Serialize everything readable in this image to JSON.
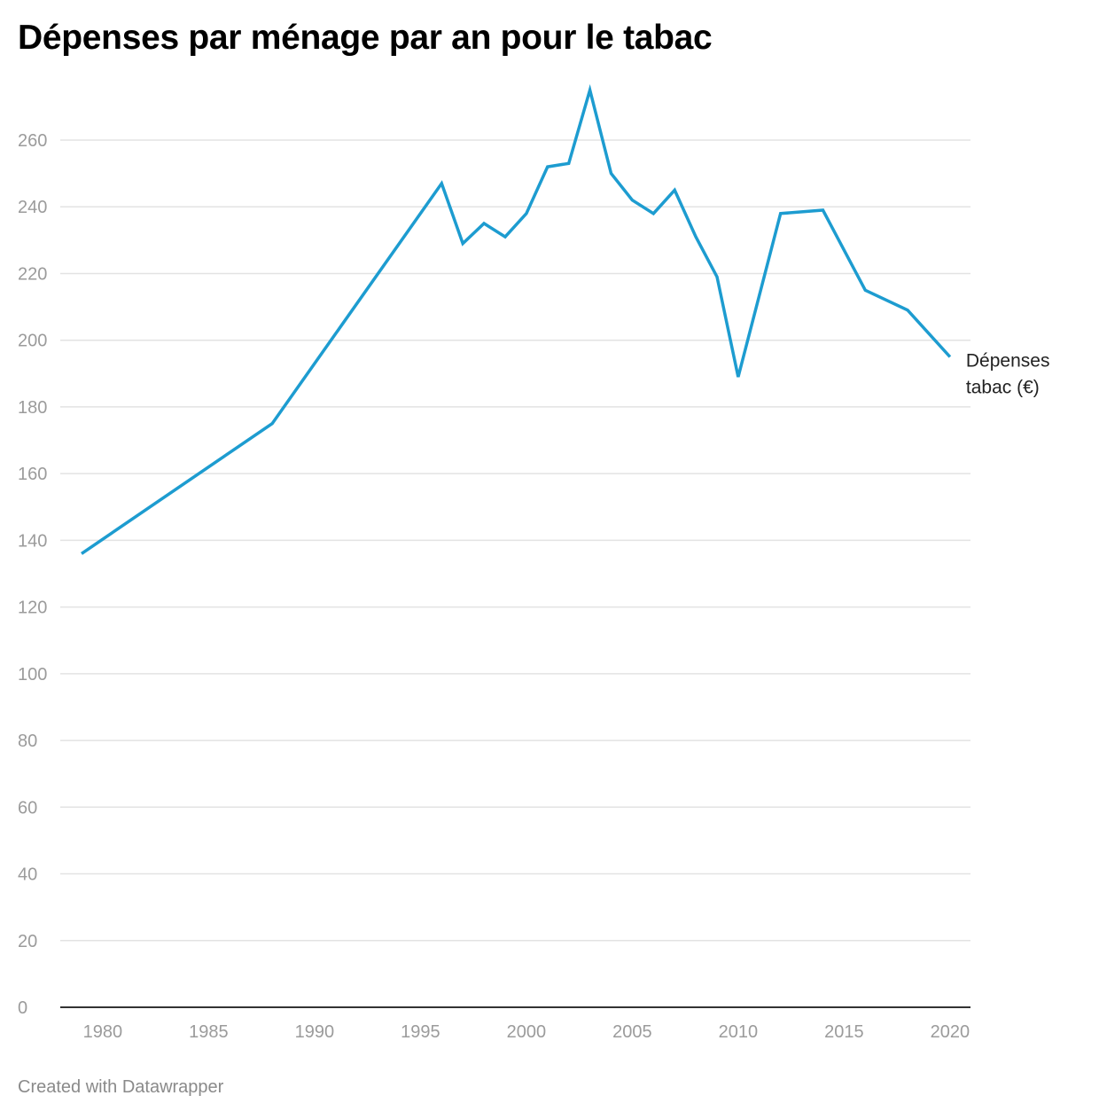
{
  "chart_data": {
    "type": "line",
    "title": "Dépenses par ménage par an pour le tabac",
    "xlabel": "",
    "ylabel": "",
    "xlim": [
      1979,
      2020
    ],
    "ylim": [
      0,
      275
    ],
    "x_ticks": [
      1980,
      1985,
      1990,
      1995,
      2000,
      2005,
      2010,
      2015,
      2020
    ],
    "y_ticks": [
      0,
      20,
      40,
      60,
      80,
      100,
      120,
      140,
      160,
      180,
      200,
      220,
      240,
      260
    ],
    "grid": "horizontal",
    "legend": "none",
    "series": [
      {
        "name": "Dépenses tabac (€)",
        "label_lines": [
          "Dépenses",
          "tabac (€)"
        ],
        "color": "#1d9cd0",
        "x": [
          1979,
          1988,
          1996,
          1997,
          1998,
          1999,
          2000,
          2001,
          2002,
          2003,
          2004,
          2005,
          2006,
          2007,
          2008,
          2009,
          2010,
          2012,
          2014,
          2016,
          2018,
          2020
        ],
        "values": [
          136,
          175,
          247,
          229,
          235,
          231,
          238,
          252,
          253,
          275,
          250,
          242,
          238,
          245,
          231,
          219,
          189,
          238,
          239,
          215,
          209,
          195
        ]
      }
    ]
  },
  "footer": {
    "credit": "Created with Datawrapper"
  },
  "colors": {
    "grid": "#e3e3e3",
    "axis": "#333333",
    "tick_label": "#9b9b9b",
    "line_label": "#222222"
  }
}
